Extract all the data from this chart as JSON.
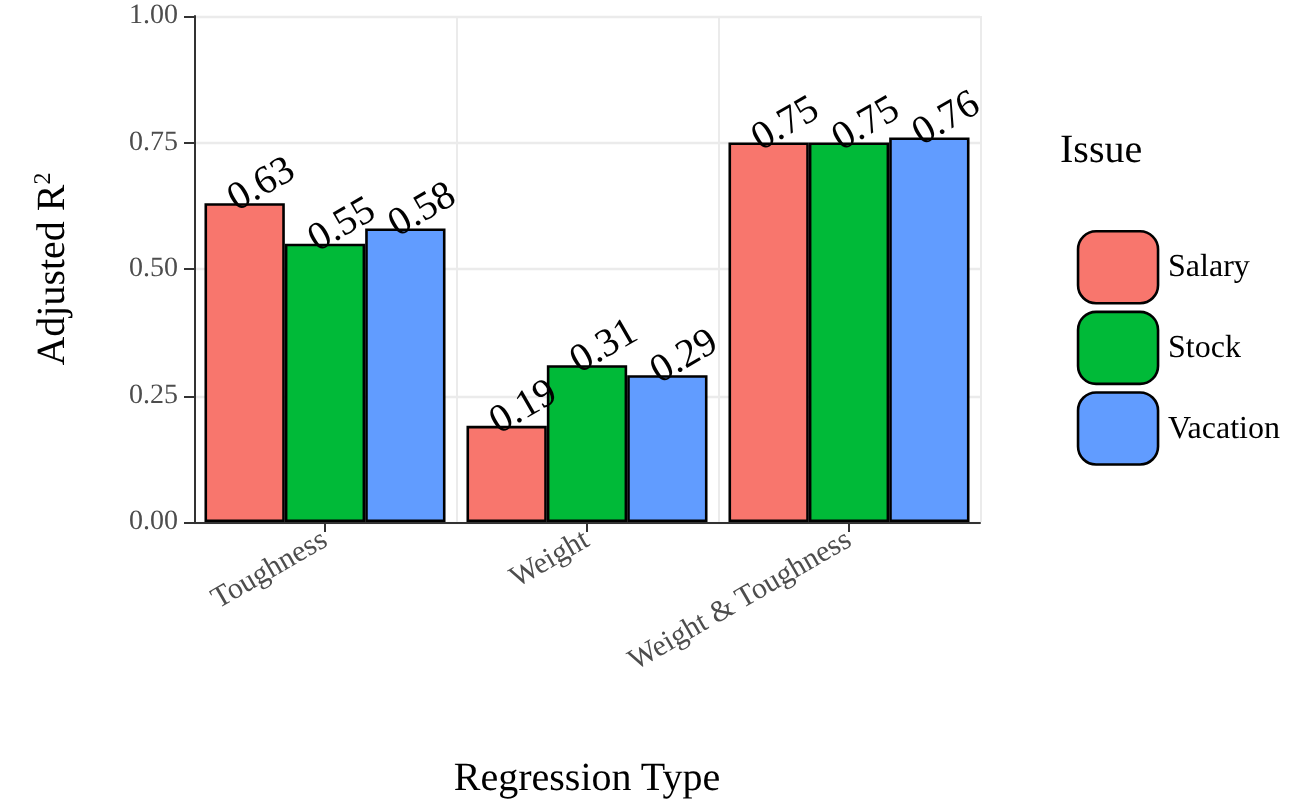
{
  "chart_data": {
    "type": "bar",
    "xlabel": "Regression Type",
    "ylabel": "Adjusted R$^{2}$",
    "legend_title": "Issue",
    "categories": [
      "Toughness",
      "Weight",
      "Weight & Toughness"
    ],
    "series": [
      {
        "name": "Salary",
        "color": "#f8766d",
        "values": [
          0.63,
          0.19,
          0.75
        ]
      },
      {
        "name": "Stock",
        "color": "#00ba38",
        "values": [
          0.55,
          0.31,
          0.75
        ]
      },
      {
        "name": "Vacation",
        "color": "#619cff",
        "values": [
          0.58,
          0.29,
          0.76
        ]
      }
    ],
    "ylim": [
      0,
      1
    ],
    "yticks": [
      {
        "value": 0,
        "label": "0.00"
      },
      {
        "value": 0.25,
        "label": "0.25"
      },
      {
        "value": 0.5,
        "label": "0.50"
      },
      {
        "value": 0.75,
        "label": "0.75"
      },
      {
        "value": 1,
        "label": "1.00"
      }
    ],
    "data_labels": true,
    "grid": true,
    "legend": "right"
  }
}
